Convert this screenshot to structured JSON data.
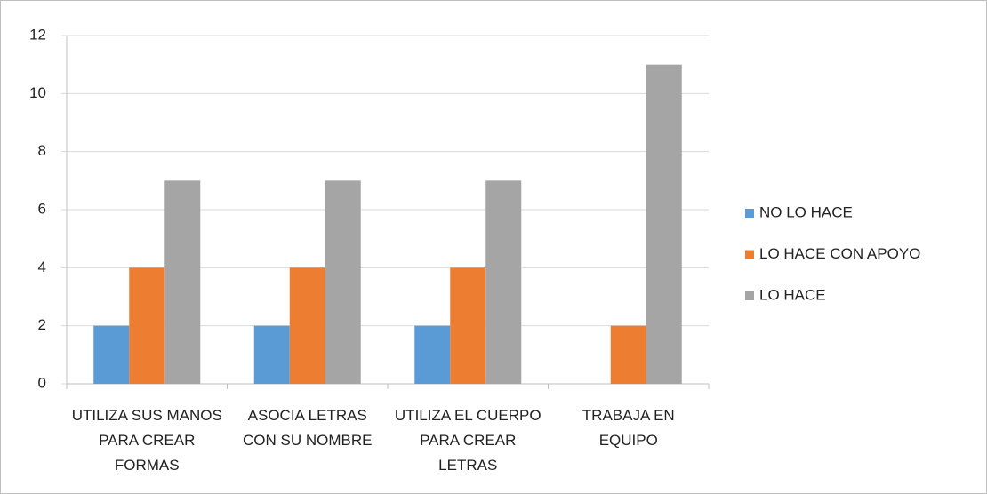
{
  "chart_data": {
    "type": "bar",
    "categories": [
      "UTILIZA SUS MANOS PARA CREAR FORMAS",
      "ASOCIA LETRAS CON SU NOMBRE",
      "UTILIZA EL CUERPO PARA CREAR LETRAS",
      "TRABAJA EN EQUIPO"
    ],
    "series": [
      {
        "name": "NO LO HACE",
        "color": "#5b9bd5",
        "values": [
          2,
          2,
          2,
          0
        ]
      },
      {
        "name": "LO HACE CON APOYO",
        "color": "#ed7d31",
        "values": [
          4,
          4,
          4,
          2
        ]
      },
      {
        "name": "LO HACE",
        "color": "#a5a5a5",
        "values": [
          7,
          7,
          7,
          11
        ]
      }
    ],
    "ylim": [
      0,
      12
    ],
    "yticks": [
      0,
      2,
      4,
      6,
      8,
      10,
      12
    ],
    "grid": true,
    "legend": "right"
  }
}
